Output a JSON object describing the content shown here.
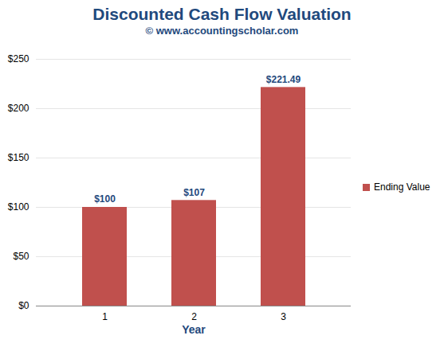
{
  "chart_data": {
    "type": "bar",
    "title": "Discounted Cash Flow Valuation",
    "subtitle": "© www.accountingscholar.com",
    "x_label": "Year",
    "categories": [
      "1",
      "2",
      "3"
    ],
    "series": [
      {
        "name": "Ending Value",
        "color": "#c0504d",
        "values": [
          100,
          107,
          221.49
        ],
        "value_labels": [
          "$100",
          "$107",
          "$221.49"
        ]
      }
    ],
    "ylim": [
      0,
      250
    ],
    "yticks": [
      {
        "value": 0,
        "label": "$0"
      },
      {
        "value": 50,
        "label": "$50"
      },
      {
        "value": 100,
        "label": "$100"
      },
      {
        "value": 150,
        "label": "$150"
      },
      {
        "value": 200,
        "label": "$200"
      },
      {
        "value": 250,
        "label": "$250"
      }
    ],
    "grid": true,
    "legend": "right",
    "data_labels": true
  }
}
